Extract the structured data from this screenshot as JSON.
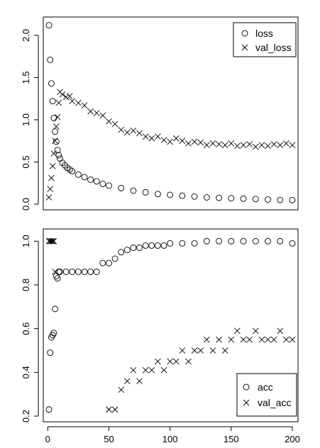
{
  "chart_data": [
    {
      "type": "scatter",
      "title": "",
      "xlabel": "",
      "ylabel": "",
      "xlim": [
        1,
        200
      ],
      "ylim": [
        0,
        2.15
      ],
      "xticks": [
        0,
        50,
        100,
        150,
        200
      ],
      "xtick_labels": [
        "0",
        "50",
        "100",
        "150",
        "200"
      ],
      "yticks": [
        0,
        0.5,
        1,
        1.5,
        2
      ],
      "ytick_labels": [
        "0.0",
        "0.5",
        "1.0",
        "1.5",
        "2.0"
      ],
      "legend_position": "top-right",
      "series": [
        {
          "name": "loss",
          "marker": "circle",
          "x": [
            1,
            2,
            3,
            4,
            5,
            6,
            7,
            8,
            9,
            10,
            12,
            14,
            16,
            18,
            20,
            25,
            30,
            35,
            40,
            45,
            50,
            60,
            70,
            80,
            90,
            100,
            110,
            120,
            130,
            140,
            150,
            160,
            170,
            180,
            190,
            200
          ],
          "y": [
            2.12,
            1.71,
            1.43,
            1.22,
            1.02,
            0.86,
            0.74,
            0.64,
            0.58,
            0.54,
            0.49,
            0.46,
            0.43,
            0.41,
            0.39,
            0.35,
            0.32,
            0.29,
            0.27,
            0.24,
            0.22,
            0.19,
            0.16,
            0.14,
            0.12,
            0.11,
            0.1,
            0.09,
            0.08,
            0.075,
            0.07,
            0.065,
            0.06,
            0.055,
            0.05,
            0.048
          ]
        },
        {
          "name": "val_loss",
          "marker": "cross",
          "x": [
            1,
            2,
            3,
            4,
            5,
            6,
            7,
            8,
            9,
            10,
            12,
            15,
            18,
            20,
            25,
            30,
            35,
            40,
            45,
            50,
            55,
            60,
            65,
            70,
            75,
            80,
            85,
            90,
            95,
            100,
            105,
            110,
            115,
            120,
            125,
            130,
            135,
            140,
            145,
            150,
            155,
            160,
            165,
            170,
            175,
            180,
            185,
            190,
            195,
            200
          ],
          "y": [
            0.08,
            0.18,
            0.31,
            0.45,
            0.6,
            0.75,
            0.92,
            1.03,
            1.2,
            1.33,
            1.3,
            1.27,
            1.28,
            1.22,
            1.2,
            1.17,
            1.1,
            1.08,
            1.05,
            0.98,
            0.95,
            0.88,
            0.85,
            0.87,
            0.84,
            0.8,
            0.78,
            0.8,
            0.76,
            0.74,
            0.78,
            0.75,
            0.72,
            0.74,
            0.73,
            0.7,
            0.72,
            0.71,
            0.7,
            0.72,
            0.69,
            0.7,
            0.71,
            0.68,
            0.7,
            0.69,
            0.71,
            0.7,
            0.72,
            0.7
          ]
        }
      ]
    },
    {
      "type": "scatter",
      "title": "",
      "xlabel": "",
      "ylabel": "",
      "xlim": [
        1,
        200
      ],
      "ylim": [
        0.2,
        1.03
      ],
      "xticks": [
        0,
        50,
        100,
        150,
        200
      ],
      "xtick_labels": [
        "0",
        "50",
        "100",
        "150",
        "200"
      ],
      "yticks": [
        0.2,
        0.4,
        0.6,
        0.8,
        1.0
      ],
      "ytick_labels": [
        "0.2",
        "0.4",
        "0.6",
        "0.8",
        "1.0"
      ],
      "legend_position": "bottom-right",
      "series": [
        {
          "name": "acc",
          "marker": "circle",
          "x": [
            1,
            2,
            3,
            4,
            5,
            6,
            7,
            8,
            9,
            10,
            15,
            20,
            25,
            30,
            35,
            40,
            45,
            50,
            55,
            60,
            65,
            70,
            75,
            80,
            85,
            90,
            95,
            100,
            110,
            120,
            130,
            140,
            150,
            160,
            170,
            180,
            190,
            200
          ],
          "y": [
            0.23,
            0.49,
            0.56,
            0.57,
            0.58,
            0.69,
            0.84,
            0.83,
            0.86,
            0.86,
            0.86,
            0.86,
            0.86,
            0.86,
            0.86,
            0.86,
            0.9,
            0.9,
            0.92,
            0.95,
            0.96,
            0.97,
            0.97,
            0.98,
            0.98,
            0.98,
            0.98,
            0.99,
            0.99,
            0.99,
            1.0,
            1.0,
            1.0,
            1.0,
            1.0,
            1.0,
            1.0,
            0.99
          ]
        },
        {
          "name": "val_acc",
          "marker": "cross",
          "x": [
            1,
            2,
            3,
            4,
            5,
            6,
            50,
            55,
            60,
            65,
            70,
            75,
            80,
            85,
            90,
            95,
            100,
            105,
            110,
            115,
            120,
            125,
            130,
            135,
            140,
            145,
            150,
            155,
            160,
            165,
            170,
            175,
            180,
            185,
            190,
            195,
            200
          ],
          "y": [
            1.0,
            1.0,
            1.0,
            1.0,
            1.0,
            0.86,
            0.23,
            0.23,
            0.32,
            0.36,
            0.41,
            0.36,
            0.41,
            0.41,
            0.45,
            0.41,
            0.45,
            0.45,
            0.5,
            0.45,
            0.5,
            0.5,
            0.55,
            0.5,
            0.55,
            0.5,
            0.55,
            0.59,
            0.55,
            0.55,
            0.59,
            0.55,
            0.55,
            0.55,
            0.59,
            0.55,
            0.55
          ]
        }
      ]
    }
  ]
}
